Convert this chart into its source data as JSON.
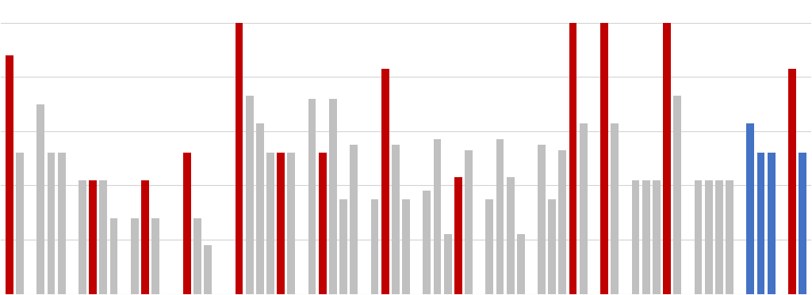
{
  "bars": [
    {
      "value": 88,
      "color": "#c00000"
    },
    {
      "value": 52,
      "color": "#c0c0c0"
    },
    {
      "value": 0,
      "color": "none"
    },
    {
      "value": 70,
      "color": "#c0c0c0"
    },
    {
      "value": 52,
      "color": "#c0c0c0"
    },
    {
      "value": 52,
      "color": "#c0c0c0"
    },
    {
      "value": 0,
      "color": "none"
    },
    {
      "value": 42,
      "color": "#c0c0c0"
    },
    {
      "value": 42,
      "color": "#c00000"
    },
    {
      "value": 42,
      "color": "#c0c0c0"
    },
    {
      "value": 28,
      "color": "#c0c0c0"
    },
    {
      "value": 0,
      "color": "none"
    },
    {
      "value": 28,
      "color": "#c0c0c0"
    },
    {
      "value": 42,
      "color": "#c00000"
    },
    {
      "value": 28,
      "color": "#c0c0c0"
    },
    {
      "value": 0,
      "color": "none"
    },
    {
      "value": 0,
      "color": "none"
    },
    {
      "value": 52,
      "color": "#c00000"
    },
    {
      "value": 28,
      "color": "#c0c0c0"
    },
    {
      "value": 18,
      "color": "#c0c0c0"
    },
    {
      "value": 0,
      "color": "none"
    },
    {
      "value": 0,
      "color": "none"
    },
    {
      "value": 100,
      "color": "#c00000"
    },
    {
      "value": 73,
      "color": "#c0c0c0"
    },
    {
      "value": 63,
      "color": "#c0c0c0"
    },
    {
      "value": 52,
      "color": "#c0c0c0"
    },
    {
      "value": 52,
      "color": "#c00000"
    },
    {
      "value": 52,
      "color": "#c0c0c0"
    },
    {
      "value": 0,
      "color": "none"
    },
    {
      "value": 72,
      "color": "#c0c0c0"
    },
    {
      "value": 52,
      "color": "#c00000"
    },
    {
      "value": 72,
      "color": "#c0c0c0"
    },
    {
      "value": 35,
      "color": "#c0c0c0"
    },
    {
      "value": 55,
      "color": "#c0c0c0"
    },
    {
      "value": 0,
      "color": "none"
    },
    {
      "value": 35,
      "color": "#c0c0c0"
    },
    {
      "value": 83,
      "color": "#c00000"
    },
    {
      "value": 55,
      "color": "#c0c0c0"
    },
    {
      "value": 35,
      "color": "#c0c0c0"
    },
    {
      "value": 0,
      "color": "none"
    },
    {
      "value": 38,
      "color": "#c0c0c0"
    },
    {
      "value": 57,
      "color": "#c0c0c0"
    },
    {
      "value": 22,
      "color": "#c0c0c0"
    },
    {
      "value": 43,
      "color": "#c00000"
    },
    {
      "value": 53,
      "color": "#c0c0c0"
    },
    {
      "value": 0,
      "color": "none"
    },
    {
      "value": 35,
      "color": "#c0c0c0"
    },
    {
      "value": 57,
      "color": "#c0c0c0"
    },
    {
      "value": 43,
      "color": "#c0c0c0"
    },
    {
      "value": 22,
      "color": "#c0c0c0"
    },
    {
      "value": 0,
      "color": "none"
    },
    {
      "value": 55,
      "color": "#c0c0c0"
    },
    {
      "value": 35,
      "color": "#c0c0c0"
    },
    {
      "value": 53,
      "color": "#c0c0c0"
    },
    {
      "value": 100,
      "color": "#c00000"
    },
    {
      "value": 63,
      "color": "#c0c0c0"
    },
    {
      "value": 0,
      "color": "none"
    },
    {
      "value": 100,
      "color": "#c00000"
    },
    {
      "value": 63,
      "color": "#c0c0c0"
    },
    {
      "value": 0,
      "color": "none"
    },
    {
      "value": 42,
      "color": "#c0c0c0"
    },
    {
      "value": 42,
      "color": "#c0c0c0"
    },
    {
      "value": 42,
      "color": "#c0c0c0"
    },
    {
      "value": 100,
      "color": "#c00000"
    },
    {
      "value": 73,
      "color": "#c0c0c0"
    },
    {
      "value": 0,
      "color": "none"
    },
    {
      "value": 42,
      "color": "#c0c0c0"
    },
    {
      "value": 42,
      "color": "#c0c0c0"
    },
    {
      "value": 42,
      "color": "#c0c0c0"
    },
    {
      "value": 42,
      "color": "#c0c0c0"
    },
    {
      "value": 0,
      "color": "none"
    },
    {
      "value": 63,
      "color": "#4472c4"
    },
    {
      "value": 52,
      "color": "#4472c4"
    },
    {
      "value": 52,
      "color": "#4472c4"
    },
    {
      "value": 0,
      "color": "none"
    },
    {
      "value": 83,
      "color": "#c00000"
    },
    {
      "value": 52,
      "color": "#4472c4"
    }
  ],
  "ylim": [
    0,
    108
  ],
  "bgcolor": "#ffffff",
  "grid_color": "#d3d3d3",
  "bar_width": 0.75,
  "n_gridlines": 5
}
